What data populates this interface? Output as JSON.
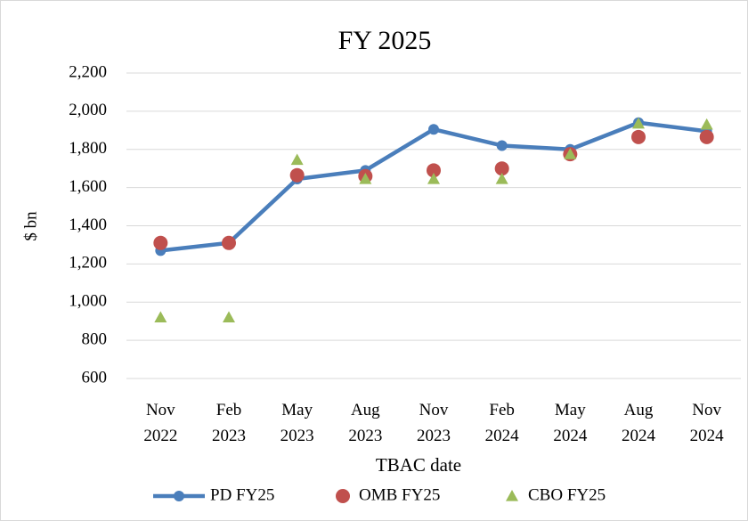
{
  "chart_data": {
    "type": "line",
    "title": "FY 2025",
    "x_label": "TBAC date",
    "y_label": "$ bn",
    "categories": [
      "Nov 2022",
      "Feb 2023",
      "May 2023",
      "Aug 2023",
      "Nov 2023",
      "Feb 2024",
      "May 2024",
      "Aug 2024",
      "Nov 2024"
    ],
    "series": [
      {
        "name": "PD FY25",
        "color": "#4a7ebb",
        "marker": "circle",
        "line": true,
        "values": [
          1270,
          1310,
          1645,
          1690,
          1905,
          1820,
          1800,
          1940,
          1895
        ]
      },
      {
        "name": "OMB FY25",
        "color": "#c0504d",
        "marker": "circle",
        "line": false,
        "values": [
          1310,
          1310,
          1665,
          1660,
          1690,
          1700,
          1775,
          1865,
          1865
        ]
      },
      {
        "name": "CBO FY25",
        "color": "#9bbb59",
        "marker": "triangle",
        "line": false,
        "values": [
          920,
          920,
          1745,
          1645,
          1645,
          1645,
          1775,
          1935,
          1930
        ]
      }
    ],
    "ylim": [
      600,
      2200
    ],
    "yticks": [
      600,
      800,
      {
        "value": 1000,
        "label": "1,000"
      },
      {
        "value": 1200,
        "label": "1,200"
      },
      {
        "value": 1400,
        "label": "1,400"
      },
      {
        "value": 1600,
        "label": "1,600"
      },
      {
        "value": 1800,
        "label": "1,800"
      },
      {
        "value": 2000,
        "label": "2,000"
      },
      {
        "value": 2200,
        "label": "2,200"
      }
    ],
    "grid": true,
    "legend": "bottom"
  }
}
